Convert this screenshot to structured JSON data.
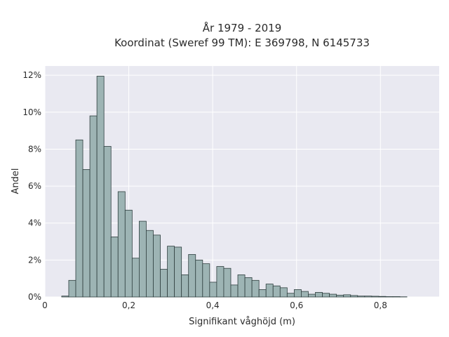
{
  "chart_data": {
    "type": "bar",
    "title_line1": "År 1979 - 2019",
    "title_line2": "Koordinat (Sweref 99 TM): E 369798, N 6145733",
    "xlabel": "Signifikant våghöjd (m)",
    "ylabel": "Andel",
    "xlim": [
      0,
      0.94
    ],
    "ylim": [
      0,
      12.5
    ],
    "x_ticks": [
      {
        "value": 0,
        "label": "0"
      },
      {
        "value": 0.2,
        "label": "0,2"
      },
      {
        "value": 0.4,
        "label": "0,4"
      },
      {
        "value": 0.6,
        "label": "0,6"
      },
      {
        "value": 0.8,
        "label": "0,8"
      }
    ],
    "y_ticks": [
      {
        "value": 0,
        "label": "0%"
      },
      {
        "value": 2,
        "label": "2%"
      },
      {
        "value": 4,
        "label": "4%"
      },
      {
        "value": 6,
        "label": "6%"
      },
      {
        "value": 8,
        "label": "8%"
      },
      {
        "value": 10,
        "label": "10%"
      },
      {
        "value": 12,
        "label": "12%"
      }
    ],
    "grid": true,
    "bin_start": 0.04,
    "bin_width": 0.0168,
    "values": [
      0.05,
      0.9,
      8.5,
      6.9,
      9.8,
      11.95,
      8.15,
      3.25,
      5.7,
      4.7,
      2.1,
      4.1,
      3.6,
      3.35,
      1.5,
      2.75,
      2.7,
      1.2,
      2.3,
      2.0,
      1.8,
      0.8,
      1.65,
      1.55,
      0.65,
      1.2,
      1.05,
      0.9,
      0.4,
      0.7,
      0.6,
      0.5,
      0.2,
      0.4,
      0.3,
      0.15,
      0.25,
      0.2,
      0.15,
      0.1,
      0.12,
      0.08,
      0.05,
      0.05,
      0.04,
      0.03,
      0.02,
      0.02,
      0.01
    ],
    "colors": {
      "bar_fill": "#9db4b4",
      "bar_stroke": "#2f3f3f",
      "plot_background": "#e9e9f1",
      "grid": "#ffffff"
    }
  }
}
